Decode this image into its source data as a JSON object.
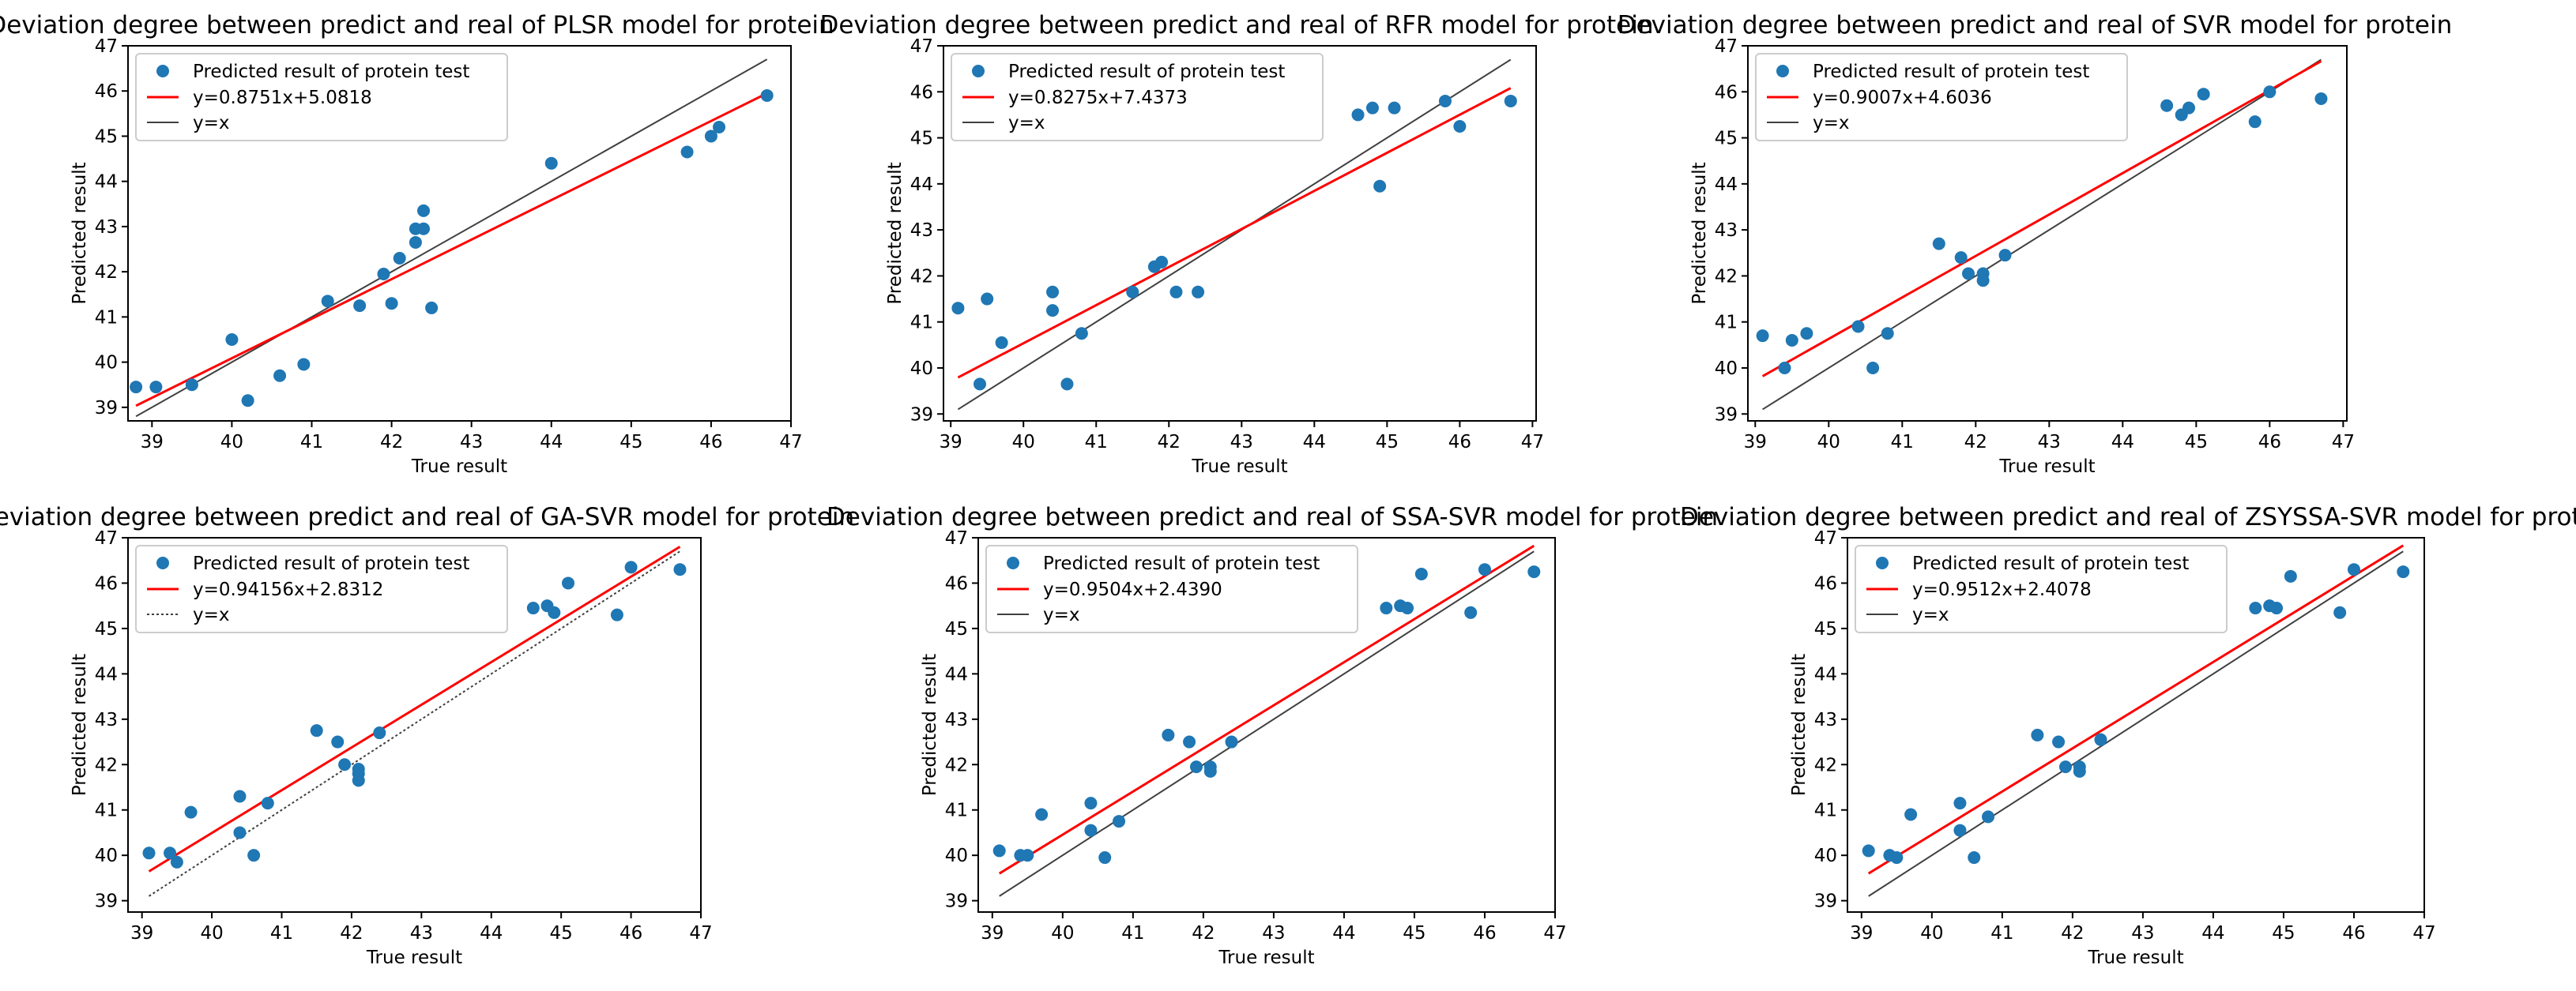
{
  "colors": {
    "points": "#1f77b4",
    "fit": "#ff0000",
    "identity": "#404040",
    "frame": "#000000"
  },
  "chart_data": [
    {
      "type": "scatter",
      "title": "Deviation degree between predict and real of PLSR model for protein",
      "xlabel": "True result",
      "ylabel": "Predicted result",
      "xlim": [
        38.7,
        47.0
      ],
      "ylim": [
        38.7,
        47.0
      ],
      "xticks": [
        39,
        40,
        41,
        42,
        43,
        44,
        45,
        46,
        47
      ],
      "yticks": [
        39,
        40,
        41,
        42,
        43,
        44,
        45,
        46,
        47
      ],
      "legend": {
        "points": "Predicted result of protein test",
        "fit": "y=0.8751x+5.0818",
        "identity": "y=x"
      },
      "fit": {
        "slope": 0.8751,
        "intercept": 5.0818,
        "x": [
          38.8,
          46.7
        ]
      },
      "identity_x": [
        38.8,
        46.7
      ],
      "identity_dashed": false,
      "points": [
        [
          38.8,
          39.45
        ],
        [
          39.05,
          39.45
        ],
        [
          39.5,
          39.5
        ],
        [
          40.0,
          40.5
        ],
        [
          40.2,
          39.15
        ],
        [
          40.6,
          39.7
        ],
        [
          40.9,
          39.95
        ],
        [
          41.2,
          41.35
        ],
        [
          41.6,
          41.25
        ],
        [
          41.9,
          41.95
        ],
        [
          42.0,
          41.3
        ],
        [
          42.1,
          42.3
        ],
        [
          42.3,
          42.65
        ],
        [
          42.3,
          42.95
        ],
        [
          42.4,
          42.95
        ],
        [
          42.4,
          43.35
        ],
        [
          42.5,
          41.2
        ],
        [
          44.0,
          44.4
        ],
        [
          45.7,
          44.65
        ],
        [
          46.0,
          45.0
        ],
        [
          46.1,
          45.2
        ],
        [
          46.7,
          45.9
        ]
      ]
    },
    {
      "type": "scatter",
      "title": "Deviation degree between predict and real of RFR model for protein",
      "xlabel": "True result",
      "ylabel": "Predicted result",
      "xlim": [
        38.9,
        47.05
      ],
      "ylim": [
        38.85,
        47.0
      ],
      "xticks": [
        39,
        40,
        41,
        42,
        43,
        44,
        45,
        46,
        47
      ],
      "yticks": [
        39,
        40,
        41,
        42,
        43,
        44,
        45,
        46,
        47
      ],
      "legend": {
        "points": "Predicted result of protein test",
        "fit": "y=0.8275x+7.4373",
        "identity": "y=x"
      },
      "fit": {
        "slope": 0.8275,
        "intercept": 7.4373,
        "x": [
          39.1,
          46.7
        ]
      },
      "identity_x": [
        39.1,
        46.7
      ],
      "identity_dashed": false,
      "points": [
        [
          39.1,
          41.3
        ],
        [
          39.4,
          39.65
        ],
        [
          39.5,
          41.5
        ],
        [
          39.7,
          40.55
        ],
        [
          40.4,
          41.65
        ],
        [
          40.4,
          41.25
        ],
        [
          40.6,
          39.65
        ],
        [
          40.8,
          40.75
        ],
        [
          41.5,
          41.65
        ],
        [
          41.8,
          42.2
        ],
        [
          41.9,
          42.3
        ],
        [
          42.1,
          41.65
        ],
        [
          42.4,
          41.65
        ],
        [
          44.6,
          45.5
        ],
        [
          44.8,
          45.65
        ],
        [
          44.9,
          43.95
        ],
        [
          45.1,
          45.65
        ],
        [
          45.8,
          45.8
        ],
        [
          46.0,
          45.25
        ],
        [
          46.7,
          45.8
        ]
      ]
    },
    {
      "type": "scatter",
      "title": "Deviation degree between predict and real of SVR model for protein",
      "xlabel": "True result",
      "ylabel": "Predicted result",
      "xlim": [
        38.9,
        47.05
      ],
      "ylim": [
        38.85,
        47.0
      ],
      "xticks": [
        39,
        40,
        41,
        42,
        43,
        44,
        45,
        46,
        47
      ],
      "yticks": [
        39,
        40,
        41,
        42,
        43,
        44,
        45,
        46,
        47
      ],
      "legend": {
        "points": "Predicted result of protein test",
        "fit": "y=0.9007x+4.6036",
        "identity": "y=x"
      },
      "fit": {
        "slope": 0.9007,
        "intercept": 4.6036,
        "x": [
          39.1,
          46.7
        ]
      },
      "identity_x": [
        39.1,
        46.7
      ],
      "identity_dashed": false,
      "points": [
        [
          39.1,
          40.7
        ],
        [
          39.4,
          40.0
        ],
        [
          39.5,
          40.6
        ],
        [
          39.7,
          40.75
        ],
        [
          40.4,
          40.9
        ],
        [
          40.6,
          40.0
        ],
        [
          40.8,
          40.75
        ],
        [
          41.5,
          42.7
        ],
        [
          41.8,
          42.4
        ],
        [
          41.9,
          42.05
        ],
        [
          42.1,
          42.05
        ],
        [
          42.1,
          41.9
        ],
        [
          42.4,
          42.45
        ],
        [
          44.6,
          45.7
        ],
        [
          44.8,
          45.5
        ],
        [
          44.9,
          45.65
        ],
        [
          45.1,
          45.95
        ],
        [
          45.8,
          45.35
        ],
        [
          46.0,
          46.0
        ],
        [
          46.7,
          45.85
        ]
      ]
    },
    {
      "type": "scatter",
      "title": "Deviation degree between predict and real of GA-SVR model for protein",
      "xlabel": "True result",
      "ylabel": "Predicted result",
      "xlim": [
        38.8,
        47.0
      ],
      "ylim": [
        38.75,
        47.0
      ],
      "xticks": [
        39,
        40,
        41,
        42,
        43,
        44,
        45,
        46,
        47
      ],
      "yticks": [
        39,
        40,
        41,
        42,
        43,
        44,
        45,
        46,
        47
      ],
      "legend": {
        "points": "Predicted result of protein test",
        "fit": "y=0.94156x+2.8312",
        "identity": "y=x"
      },
      "fit": {
        "slope": 0.94156,
        "intercept": 2.8312,
        "x": [
          39.1,
          46.7
        ]
      },
      "identity_x": [
        39.1,
        46.7
      ],
      "identity_dashed": true,
      "points": [
        [
          39.1,
          40.05
        ],
        [
          39.4,
          40.05
        ],
        [
          39.5,
          39.85
        ],
        [
          39.7,
          40.95
        ],
        [
          40.4,
          41.3
        ],
        [
          40.4,
          40.5
        ],
        [
          40.6,
          40.0
        ],
        [
          40.8,
          41.15
        ],
        [
          41.5,
          42.75
        ],
        [
          41.8,
          42.5
        ],
        [
          41.9,
          42.0
        ],
        [
          42.1,
          41.9
        ],
        [
          42.1,
          41.65
        ],
        [
          42.1,
          41.8
        ],
        [
          42.4,
          42.7
        ],
        [
          44.6,
          45.45
        ],
        [
          44.8,
          45.5
        ],
        [
          44.9,
          45.35
        ],
        [
          45.1,
          46.0
        ],
        [
          45.8,
          45.3
        ],
        [
          46.0,
          46.35
        ],
        [
          46.7,
          46.3
        ]
      ]
    },
    {
      "type": "scatter",
      "title": "Deviation degree between predict and real of SSA-SVR model for protein",
      "xlabel": "True result",
      "ylabel": "Predicted result",
      "xlim": [
        38.8,
        47.0
      ],
      "ylim": [
        38.75,
        47.0
      ],
      "xticks": [
        39,
        40,
        41,
        42,
        43,
        44,
        45,
        46,
        47
      ],
      "yticks": [
        39,
        40,
        41,
        42,
        43,
        44,
        45,
        46,
        47
      ],
      "legend": {
        "points": "Predicted result of protein test",
        "fit": "y=0.9504x+2.4390",
        "identity": "y=x"
      },
      "fit": {
        "slope": 0.9504,
        "intercept": 2.439,
        "x": [
          39.1,
          46.7
        ]
      },
      "identity_x": [
        39.1,
        46.7
      ],
      "identity_dashed": false,
      "points": [
        [
          39.1,
          40.1
        ],
        [
          39.4,
          40.0
        ],
        [
          39.5,
          40.0
        ],
        [
          39.7,
          40.9
        ],
        [
          40.4,
          41.15
        ],
        [
          40.4,
          40.55
        ],
        [
          40.6,
          39.95
        ],
        [
          40.8,
          40.75
        ],
        [
          41.5,
          42.65
        ],
        [
          41.8,
          42.5
        ],
        [
          41.9,
          41.95
        ],
        [
          42.1,
          41.95
        ],
        [
          42.1,
          41.85
        ],
        [
          42.4,
          42.5
        ],
        [
          44.6,
          45.45
        ],
        [
          44.8,
          45.5
        ],
        [
          44.9,
          45.45
        ],
        [
          45.1,
          46.2
        ],
        [
          45.8,
          45.35
        ],
        [
          46.0,
          46.3
        ],
        [
          46.7,
          46.25
        ]
      ]
    },
    {
      "type": "scatter",
      "title": "Deviation degree between predict and real of ZSYSSA-SVR model for protein",
      "xlabel": "True result",
      "ylabel": "Predicted result",
      "xlim": [
        38.8,
        47.0
      ],
      "ylim": [
        38.75,
        47.0
      ],
      "xticks": [
        39,
        40,
        41,
        42,
        43,
        44,
        45,
        46,
        47
      ],
      "yticks": [
        39,
        40,
        41,
        42,
        43,
        44,
        45,
        46,
        47
      ],
      "legend": {
        "points": "Predicted result of protein test",
        "fit": "y=0.9512x+2.4078",
        "identity": "y=x"
      },
      "fit": {
        "slope": 0.9512,
        "intercept": 2.4078,
        "x": [
          39.1,
          46.7
        ]
      },
      "identity_x": [
        39.1,
        46.7
      ],
      "identity_dashed": false,
      "points": [
        [
          39.1,
          40.1
        ],
        [
          39.4,
          40.0
        ],
        [
          39.5,
          39.95
        ],
        [
          39.7,
          40.9
        ],
        [
          40.4,
          41.15
        ],
        [
          40.4,
          40.55
        ],
        [
          40.6,
          39.95
        ],
        [
          40.8,
          40.85
        ],
        [
          41.5,
          42.65
        ],
        [
          41.8,
          42.5
        ],
        [
          41.9,
          41.95
        ],
        [
          42.1,
          41.95
        ],
        [
          42.1,
          41.85
        ],
        [
          42.4,
          42.55
        ],
        [
          44.6,
          45.45
        ],
        [
          44.8,
          45.5
        ],
        [
          44.9,
          45.45
        ],
        [
          45.1,
          46.15
        ],
        [
          45.8,
          45.35
        ],
        [
          46.0,
          46.3
        ],
        [
          46.7,
          46.25
        ]
      ]
    }
  ]
}
